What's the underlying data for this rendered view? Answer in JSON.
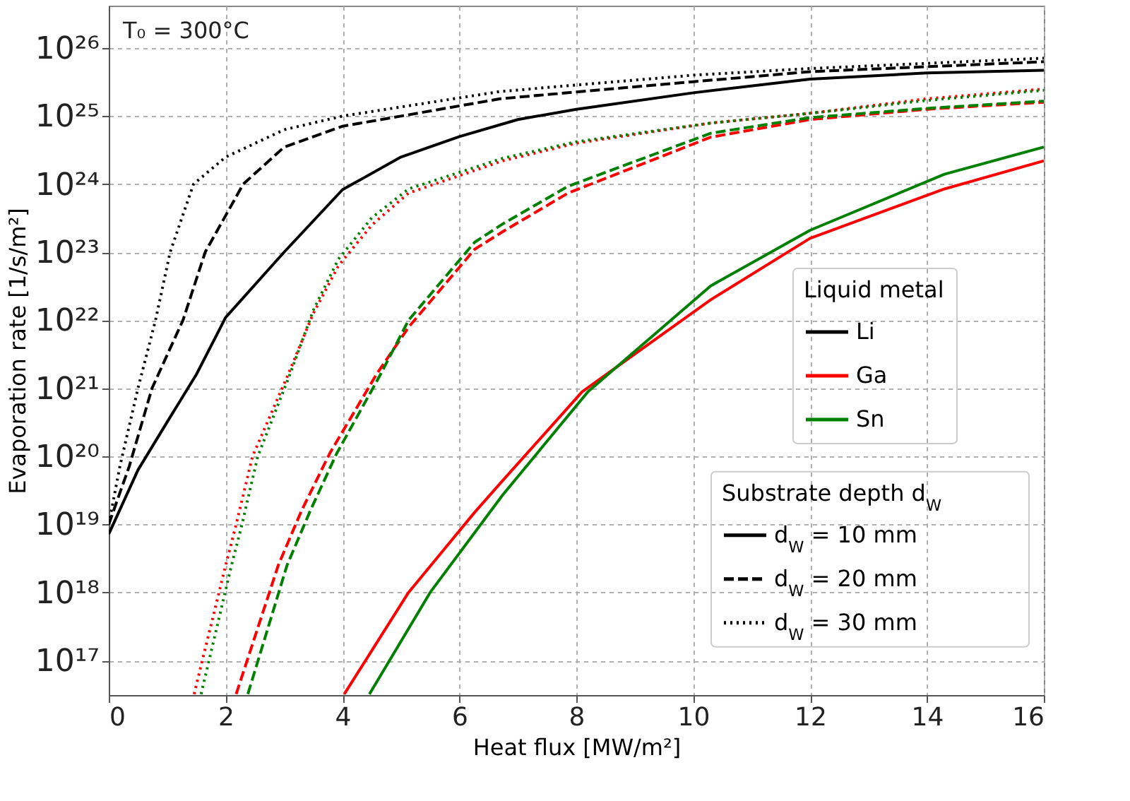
{
  "chart_data": {
    "type": "line",
    "xlabel": "Heat flux [MW/m²]",
    "ylabel": "Evaporation rate [1/s/m²]",
    "log": "y",
    "grid": true,
    "legend": "bottom right",
    "legend_title": "Liquid metal",
    "xlim": [
      0,
      16
    ],
    "xticks": [
      0,
      2,
      4,
      6,
      8,
      10,
      12,
      14,
      16
    ],
    "ylim": [
      3.1e+16,
      4.2e+26
    ],
    "yticks": [
      {
        "value": 1e+17,
        "label": "10¹⁷"
      },
      {
        "value": 1e+18,
        "label": "10¹⁸"
      },
      {
        "value": 1e+19,
        "label": "10¹⁹"
      },
      {
        "value": 1e+20,
        "label": "10²⁰"
      },
      {
        "value": 1e+21,
        "label": "10²¹"
      },
      {
        "value": 1e+22,
        "label": "10²²"
      },
      {
        "value": 1e+23,
        "label": "10²³"
      },
      {
        "value": 1e+24,
        "label": "10²⁴"
      },
      {
        "value": 1e+25,
        "label": "10²⁵"
      },
      {
        "value": 1e+26,
        "label": "10²⁶"
      }
    ],
    "annotations": [
      "T₀ = 300°C",
      "Substrate depth d$_{W}$",
      "d$_{W}$ = 10 mm",
      "d$_{W}$ = 20 mm",
      "d$_{W}$ = 30 mm"
    ],
    "series": [
      {
        "name": "Li",
        "color": "#000000",
        "line_style": "solid",
        "x": [
          0,
          0.5,
          1,
          1.5,
          2,
          3,
          4,
          5,
          6,
          7,
          8,
          10,
          12,
          14,
          16
        ],
        "values": [
          7.2e+18,
          6.3e+19,
          3.2e+20,
          1.6e+21,
          1.1e+22,
          1e+23,
          8.3e+23,
          2.5e+24,
          5e+24,
          8.9e+24,
          1.26e+25,
          2.2e+25,
          3.5e+25,
          4.3e+25,
          4.7e+25
        ]
      },
      {
        "name": "Ga",
        "color": "#ff0000",
        "line_style": "solid",
        "x": [
          4.03,
          5.13,
          6.26,
          6.74,
          8.1,
          10.3,
          12,
          14.3,
          16
        ],
        "values": [
          3.2e+16,
          1e+18,
          1.5e+19,
          4.4e+19,
          8.9e+20,
          2e+22,
          1.6e+23,
          8.5e+23,
          2.2e+24
        ]
      },
      {
        "name": "Sn",
        "color": "#008000",
        "line_style": "solid",
        "x": [
          4.46,
          5.5,
          6.74,
          8.2,
          10.3,
          12,
          14.3,
          16
        ],
        "values": [
          3.2e+16,
          1e+18,
          2.7e+19,
          8.9e+20,
          3.2e+22,
          2.1e+23,
          1.4e+24,
          3.5e+24
        ]
      },
      {
        "color": "#000000",
        "line_style": "dashed",
        "x": [
          0,
          0.35,
          0.74,
          1.27,
          1.65,
          2.3,
          3,
          4,
          5,
          6.7,
          10,
          12,
          16
        ],
        "values": [
          1e+19,
          7.1e+19,
          1e+21,
          1e+22,
          1e+23,
          1e+24,
          3.5e+24,
          7.1e+24,
          1e+25,
          1.8e+25,
          3.2e+25,
          4.5e+25,
          6.3e+25
        ]
      },
      {
        "color": "#ff0000",
        "line_style": "dashed",
        "x": [
          2.18,
          2.9,
          3.3,
          3.78,
          4.58,
          5.13,
          6.26,
          6.74,
          7.86,
          10.3,
          12,
          14,
          16
        ],
        "values": [
          3.2e+16,
          2.5e+18,
          1.6e+19,
          1.1e+20,
          1.6e+21,
          7.9e+21,
          1.1e+23,
          2e+23,
          7.4e+23,
          4.9e+24,
          8.9e+24,
          1.26e+25,
          1.6e+25
        ]
      },
      {
        "color": "#008000",
        "line_style": "dashed",
        "x": [
          2.38,
          3.05,
          3.45,
          3.9,
          4.65,
          5.13,
          6.26,
          6.74,
          7.86,
          10.3,
          12,
          14,
          16
        ],
        "values": [
          3.2e+16,
          2.5e+18,
          1.6e+19,
          1.1e+20,
          1.6e+21,
          1e+22,
          1.4e+23,
          2.6e+23,
          9.3e+23,
          5.6e+24,
          9.5e+24,
          1.3e+25,
          1.66e+25
        ]
      },
      {
        "color": "#000000",
        "line_style": "dotted",
        "x": [
          0,
          0.19,
          0.5,
          0.8,
          1.05,
          1.45,
          2,
          3,
          4,
          6.7,
          10,
          12,
          16
        ],
        "values": [
          1e+19,
          7.1e+19,
          1e+21,
          1e+22,
          1e+23,
          1e+24,
          2.5e+24,
          6.3e+24,
          1e+25,
          2.3e+25,
          4e+25,
          5e+25,
          7.1e+25
        ]
      },
      {
        "color": "#ff0000",
        "line_style": "dotted",
        "x": [
          1.46,
          2,
          2.18,
          2.46,
          3.07,
          3.5,
          3.93,
          4.5,
          5.13,
          6.74,
          8,
          10.3,
          12,
          14,
          16
        ],
        "values": [
          3.2e+16,
          2.5e+18,
          1e+19,
          1e+20,
          1.6e+21,
          1.26e+22,
          6.3e+22,
          2.5e+23,
          7.4e+23,
          2.2e+24,
          4e+24,
          7.9e+24,
          1.1e+25,
          1.8e+25,
          2.5e+25
        ]
      },
      {
        "color": "#008000",
        "line_style": "dotted",
        "x": [
          1.58,
          2.1,
          2.28,
          2.55,
          3.1,
          3.5,
          3.93,
          4.5,
          5.13,
          6.74,
          8,
          10.3,
          12,
          14,
          16
        ],
        "values": [
          3.2e+16,
          2.5e+18,
          1e+19,
          1e+20,
          1.6e+21,
          1.4e+22,
          7.9e+22,
          3.2e+23,
          8.5e+23,
          2.4e+24,
          4.2e+24,
          7.9e+24,
          1.1e+25,
          1.7e+25,
          2.4e+25
        ]
      }
    ]
  }
}
